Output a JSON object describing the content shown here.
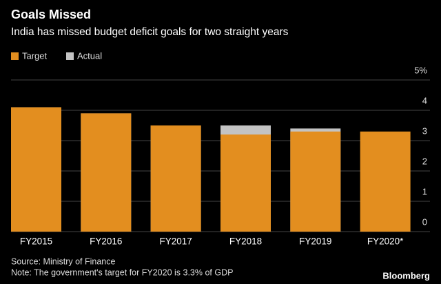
{
  "chart_data": {
    "type": "bar",
    "title": "Goals Missed",
    "subtitle": "India has missed budget deficit goals for two straight years",
    "categories": [
      "FY2015",
      "FY2016",
      "FY2017",
      "FY2018",
      "FY2019",
      "FY2020*"
    ],
    "series": [
      {
        "name": "Target",
        "color": "#e38e1f",
        "values": [
          4.1,
          3.9,
          3.5,
          3.2,
          3.3,
          3.3
        ]
      },
      {
        "name": "Actual",
        "color": "#c3c3c3",
        "values": [
          4.1,
          3.9,
          3.5,
          3.5,
          3.4,
          null
        ]
      }
    ],
    "ylim": [
      0,
      5
    ],
    "yticks": [
      0,
      1,
      2,
      3,
      4,
      {
        "value": 5,
        "label": "5%"
      }
    ],
    "grid": true,
    "source": "Source: Ministry of Finance",
    "note": "Note: The government's target for FY2020 is 3.3% of GDP",
    "brand": "Bloomberg"
  }
}
